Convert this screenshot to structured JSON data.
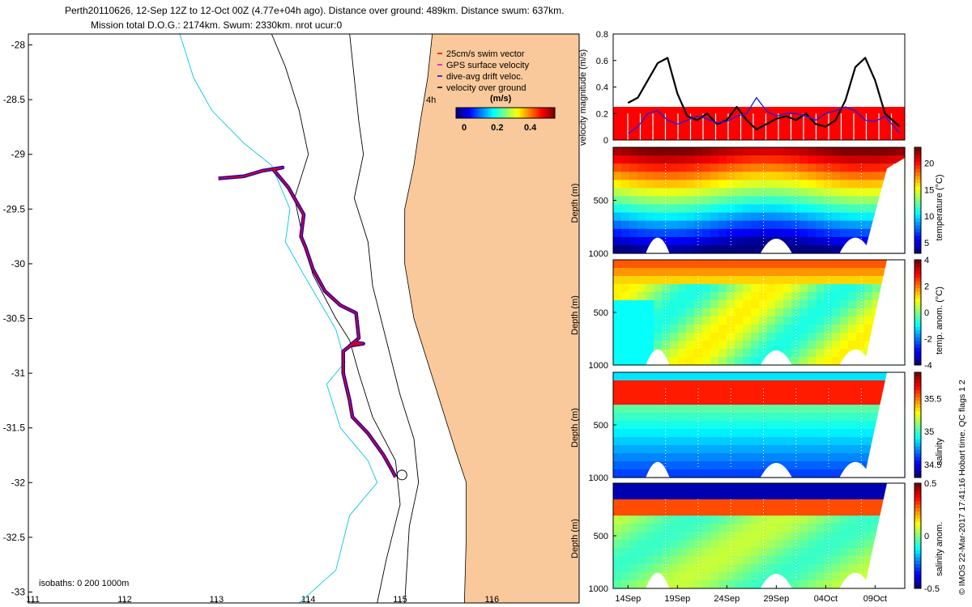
{
  "header": {
    "line1": "Perth20110626, 12-Sep 12Z to 12-Oct 00Z (4.77e+04h ago). Distance over ground: 489km. Distance swum: 637km.",
    "line2": "Mission total D.O.G.: 2174km. Swum: 2330km. nrot ucur:0"
  },
  "footer_note": "© IMOS 22-Mar-2017 17:41:16 Hobart time. QC flags 1  2",
  "colors": {
    "land": "#f9c99b",
    "isobath_shallow": "#00c8e0",
    "track_red": "#e00000",
    "track_blue": "#0000e0"
  },
  "chart_data": [
    {
      "type": "scatter",
      "panel": "map",
      "x_ticks": [
        "111",
        "112",
        "113",
        "114",
        "115",
        "116"
      ],
      "y_ticks": [
        "-28",
        "-28.5",
        "-29",
        "-29.5",
        "-30",
        "-30.5",
        "-31",
        "-31.5",
        "-32",
        "-32.5",
        "-33"
      ],
      "xlim": [
        110.95,
        116.95
      ],
      "ylim": [
        -33.1,
        -27.9
      ],
      "legend": {
        "items": [
          {
            "label": "25cm/s swim vector",
            "color": "#e00000"
          },
          {
            "label": "GPS surface velocity",
            "color": "#e000e0"
          },
          {
            "label": "dive-avg drift veloc.",
            "color": "#0000e0"
          },
          {
            "label": "velocity over ground",
            "color": "#000000"
          }
        ],
        "scale_label": "4h",
        "colorbar_label": "(m/s)",
        "colorbar_ticks": [
          "0",
          "0.2",
          "0.4"
        ]
      },
      "isobaths_label": "isobaths: 0   200  1000m",
      "track": {
        "lon": [
          113.02,
          113.3,
          113.5,
          113.72,
          113.62,
          113.78,
          113.95,
          113.92,
          113.97,
          114.05,
          114.18,
          114.35,
          114.52,
          114.55,
          114.45,
          114.6,
          114.5,
          114.38,
          114.38,
          114.45,
          114.48,
          114.65,
          114.82,
          114.92,
          114.95
        ],
        "lat": [
          -29.22,
          -29.2,
          -29.15,
          -29.12,
          -29.14,
          -29.3,
          -29.55,
          -29.75,
          -29.85,
          -30.05,
          -30.25,
          -30.38,
          -30.45,
          -30.68,
          -30.75,
          -30.73,
          -30.72,
          -30.8,
          -31.0,
          -31.25,
          -31.4,
          -31.55,
          -31.75,
          -31.9,
          -31.95
        ]
      },
      "endpoint": {
        "lon": 115.02,
        "lat": -31.93
      }
    },
    {
      "type": "line",
      "panel": "velocity",
      "ylabel": "velocity magnitude (m/s)",
      "y_ticks": [
        "0",
        "0.2",
        "0.4",
        "0.6",
        "0.8"
      ],
      "ylim": [
        0,
        0.8
      ],
      "x_days": [
        14,
        15,
        16,
        17,
        18,
        19,
        20,
        21,
        22,
        23,
        24,
        25,
        26,
        27,
        28,
        29,
        30,
        31,
        32,
        33,
        34,
        35,
        36,
        37,
        38,
        39,
        40,
        41.5
      ],
      "series": [
        {
          "values": [
            0.28,
            0.32,
            0.45,
            0.58,
            0.62,
            0.35,
            0.18,
            0.15,
            0.2,
            0.12,
            0.15,
            0.25,
            0.15,
            0.08,
            0.12,
            0.16,
            0.18,
            0.15,
            0.2,
            0.12,
            0.1,
            0.15,
            0.3,
            0.55,
            0.62,
            0.45,
            0.2,
            0.1
          ],
          "color": "#000000"
        },
        {
          "values": [
            0.05,
            0.1,
            0.2,
            0.22,
            0.15,
            0.12,
            0.15,
            0.18,
            0.16,
            0.13,
            0.14,
            0.18,
            0.2,
            0.32,
            0.22,
            0.18,
            0.2,
            0.2,
            0.18,
            0.15,
            0.2,
            0.22,
            0.25,
            0.22,
            0.15,
            0.14,
            0.18,
            0.05
          ],
          "color": "#2020e0"
        }
      ],
      "swim_band_top": 0.25
    },
    {
      "type": "heatmap",
      "panel": "temperature",
      "ylabel": "Depth (m)",
      "y_ticks": [
        "500",
        "1000"
      ],
      "colorbar_label": "temperature (°C)",
      "colorbar_ticks": [
        "5",
        "10",
        "15",
        "20"
      ],
      "colorbar_range": [
        3,
        23
      ]
    },
    {
      "type": "heatmap",
      "panel": "temp_anomaly",
      "ylabel": "Depth (m)",
      "y_ticks": [
        "500",
        "1000"
      ],
      "colorbar_label": "temp. anom. (°C)",
      "colorbar_ticks": [
        "-4",
        "-2",
        "0",
        "2",
        "4"
      ],
      "colorbar_range": [
        -4,
        4
      ]
    },
    {
      "type": "heatmap",
      "panel": "salinity",
      "ylabel": "Depth (m)",
      "y_ticks": [
        "500",
        "1000"
      ],
      "colorbar_label": "salinity",
      "colorbar_ticks": [
        "34.5",
        "35",
        "35.5"
      ],
      "colorbar_range": [
        34.3,
        35.9
      ]
    },
    {
      "type": "heatmap",
      "panel": "salinity_anomaly",
      "ylabel": "Depth (m)",
      "y_ticks": [
        "500",
        "1000"
      ],
      "colorbar_label": "salinity anom.",
      "colorbar_ticks": [
        "-0.5",
        "0",
        "0.5"
      ],
      "colorbar_range": [
        -0.5,
        0.5
      ],
      "x_tick_labels": [
        "14Sep",
        "19Sep",
        "24Sep",
        "29Sep",
        "04Oct",
        "09Oct"
      ]
    }
  ]
}
